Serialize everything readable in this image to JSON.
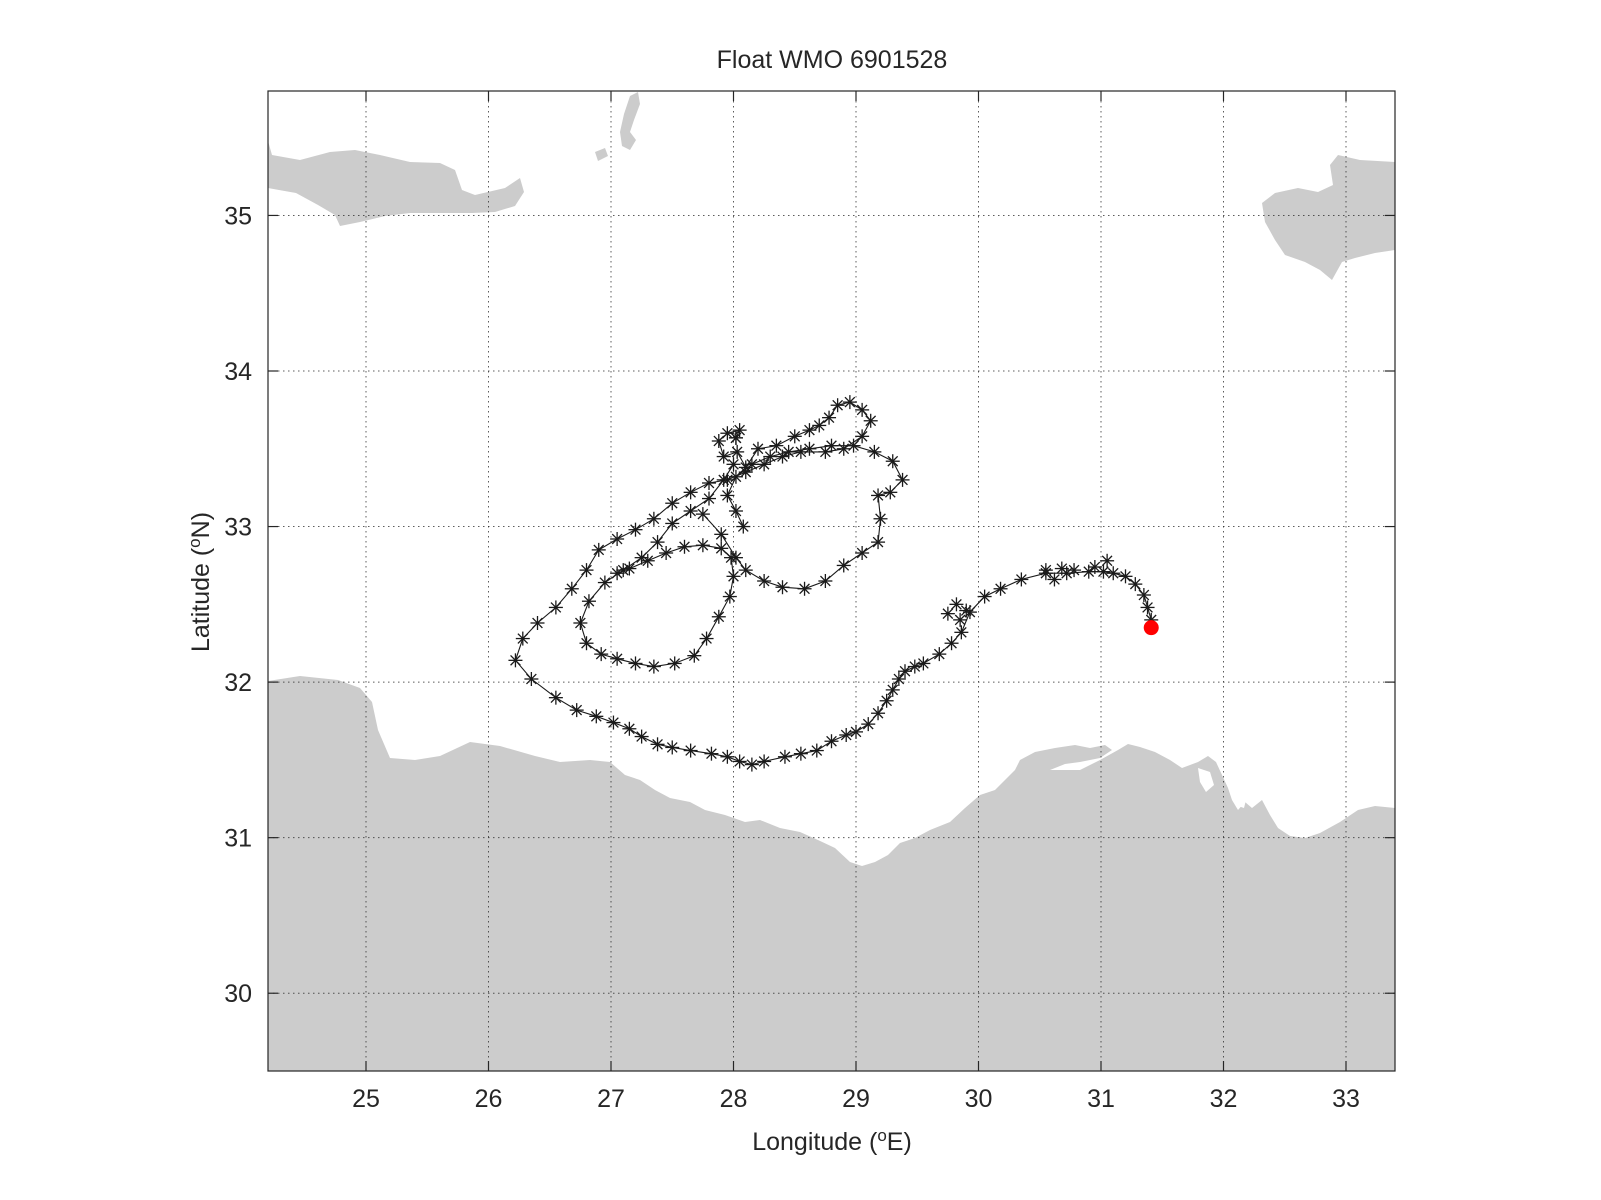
{
  "figure": {
    "title": "Float WMO 6901528",
    "xlabel": "Longitude",
    "xunit": "E",
    "ylabel": "Latitude",
    "yunit": "N",
    "degree_symbol": "o"
  },
  "chart_data": {
    "type": "line",
    "marker": "asterisk",
    "xlim": [
      24.2,
      33.4
    ],
    "ylim": [
      29.5,
      35.8
    ],
    "x_ticks": [
      25,
      26,
      27,
      28,
      29,
      30,
      31,
      32,
      33
    ],
    "y_ticks": [
      30,
      31,
      32,
      33,
      34,
      35
    ],
    "grid": true,
    "colors": {
      "track": "#1a1a1a",
      "land": "#cccccc",
      "start_marker": "#ff0000",
      "end_marker": "#ff0000"
    },
    "start_marker": {
      "lon": 28.02,
      "lat": 33.57,
      "shape": "asterisk",
      "color": "#ff0000"
    },
    "end_marker": {
      "lon": 31.41,
      "lat": 32.35,
      "shape": "filled-circle",
      "color": "#ff0000"
    },
    "track": [
      [
        28.02,
        33.57
      ],
      [
        28.05,
        33.62
      ],
      [
        27.95,
        33.6
      ],
      [
        27.88,
        33.55
      ],
      [
        27.92,
        33.45
      ],
      [
        28.03,
        33.48
      ],
      [
        28.1,
        33.38
      ],
      [
        28.2,
        33.5
      ],
      [
        28.35,
        33.52
      ],
      [
        28.5,
        33.58
      ],
      [
        28.62,
        33.62
      ],
      [
        28.7,
        33.65
      ],
      [
        28.78,
        33.7
      ],
      [
        28.85,
        33.78
      ],
      [
        28.95,
        33.8
      ],
      [
        29.05,
        33.75
      ],
      [
        29.12,
        33.68
      ],
      [
        29.05,
        33.58
      ],
      [
        28.9,
        33.5
      ],
      [
        28.75,
        33.48
      ],
      [
        28.55,
        33.48
      ],
      [
        28.4,
        33.45
      ],
      [
        28.25,
        33.4
      ],
      [
        28.1,
        33.35
      ],
      [
        27.95,
        33.3
      ],
      [
        27.8,
        33.28
      ],
      [
        27.65,
        33.22
      ],
      [
        27.5,
        33.15
      ],
      [
        27.35,
        33.05
      ],
      [
        27.2,
        32.98
      ],
      [
        27.05,
        32.92
      ],
      [
        26.9,
        32.85
      ],
      [
        26.8,
        32.72
      ],
      [
        26.68,
        32.6
      ],
      [
        26.55,
        32.48
      ],
      [
        26.4,
        32.38
      ],
      [
        26.28,
        32.28
      ],
      [
        26.22,
        32.14
      ],
      [
        26.35,
        32.02
      ],
      [
        26.55,
        31.9
      ],
      [
        26.72,
        31.82
      ],
      [
        26.88,
        31.78
      ],
      [
        27.02,
        31.74
      ],
      [
        27.15,
        31.7
      ],
      [
        27.25,
        31.65
      ],
      [
        27.38,
        31.6
      ],
      [
        27.5,
        31.58
      ],
      [
        27.65,
        31.56
      ],
      [
        27.82,
        31.54
      ],
      [
        27.95,
        31.52
      ],
      [
        28.05,
        31.49
      ],
      [
        28.15,
        31.47
      ],
      [
        28.25,
        31.49
      ],
      [
        28.42,
        31.52
      ],
      [
        28.55,
        31.54
      ],
      [
        28.68,
        31.56
      ],
      [
        28.8,
        31.62
      ],
      [
        28.92,
        31.66
      ],
      [
        29.0,
        31.68
      ],
      [
        29.1,
        31.73
      ],
      [
        29.18,
        31.8
      ],
      [
        29.25,
        31.88
      ],
      [
        29.3,
        31.95
      ],
      [
        29.35,
        32.02
      ],
      [
        29.4,
        32.07
      ],
      [
        29.48,
        32.1
      ],
      [
        29.55,
        32.12
      ],
      [
        29.68,
        32.18
      ],
      [
        29.78,
        32.25
      ],
      [
        29.86,
        32.32
      ],
      [
        29.93,
        32.45
      ],
      [
        30.05,
        32.55
      ],
      [
        30.18,
        32.6
      ],
      [
        30.35,
        32.66
      ],
      [
        30.55,
        32.7
      ],
      [
        30.72,
        32.7
      ],
      [
        30.9,
        32.71
      ],
      [
        31.02,
        32.71
      ],
      [
        31.1,
        32.7
      ],
      [
        31.2,
        32.68
      ],
      [
        31.28,
        32.63
      ],
      [
        31.35,
        32.56
      ],
      [
        31.38,
        32.48
      ],
      [
        31.41,
        32.4
      ],
      [
        31.41,
        32.35
      ]
    ],
    "track2": [
      [
        28.0,
        33.4
      ],
      [
        27.92,
        33.3
      ],
      [
        27.8,
        33.18
      ],
      [
        27.65,
        33.1
      ],
      [
        27.5,
        33.02
      ],
      [
        27.38,
        32.9
      ],
      [
        27.25,
        32.8
      ],
      [
        27.1,
        32.72
      ],
      [
        26.95,
        32.64
      ],
      [
        26.82,
        32.52
      ],
      [
        26.75,
        32.38
      ],
      [
        26.8,
        32.25
      ],
      [
        26.92,
        32.18
      ],
      [
        27.05,
        32.15
      ],
      [
        27.2,
        32.12
      ],
      [
        27.35,
        32.1
      ],
      [
        27.52,
        32.12
      ],
      [
        27.68,
        32.17
      ],
      [
        27.78,
        32.28
      ],
      [
        27.88,
        32.42
      ],
      [
        27.97,
        32.55
      ],
      [
        28.0,
        32.68
      ],
      [
        27.98,
        32.8
      ],
      [
        27.9,
        32.86
      ],
      [
        27.75,
        32.88
      ],
      [
        27.6,
        32.87
      ],
      [
        27.45,
        32.83
      ],
      [
        27.3,
        32.78
      ],
      [
        27.15,
        32.73
      ],
      [
        27.05,
        32.7
      ]
    ],
    "track3": [
      [
        27.75,
        33.08
      ],
      [
        27.9,
        32.95
      ],
      [
        28.02,
        32.8
      ],
      [
        28.1,
        32.72
      ],
      [
        28.25,
        32.65
      ],
      [
        28.4,
        32.61
      ],
      [
        28.58,
        32.6
      ],
      [
        28.75,
        32.65
      ],
      [
        28.9,
        32.75
      ],
      [
        29.05,
        32.83
      ],
      [
        29.18,
        32.9
      ],
      [
        29.2,
        33.05
      ],
      [
        29.18,
        33.2
      ],
      [
        29.28,
        33.22
      ],
      [
        29.38,
        33.3
      ],
      [
        29.3,
        33.42
      ],
      [
        29.15,
        33.48
      ],
      [
        28.98,
        33.52
      ],
      [
        28.8,
        33.52
      ],
      [
        28.62,
        33.5
      ],
      [
        28.45,
        33.48
      ],
      [
        28.3,
        33.45
      ],
      [
        28.15,
        33.4
      ],
      [
        28.02,
        33.32
      ],
      [
        27.95,
        33.2
      ],
      [
        28.02,
        33.1
      ],
      [
        28.08,
        33.0
      ]
    ],
    "track4": [
      [
        29.75,
        32.44
      ],
      [
        29.85,
        32.4
      ],
      [
        29.9,
        32.46
      ],
      [
        29.82,
        32.5
      ],
      [
        30.55,
        32.72
      ],
      [
        30.62,
        32.66
      ],
      [
        30.68,
        32.73
      ],
      [
        30.78,
        32.72
      ],
      [
        30.95,
        32.74
      ],
      [
        31.05,
        32.78
      ]
    ]
  }
}
